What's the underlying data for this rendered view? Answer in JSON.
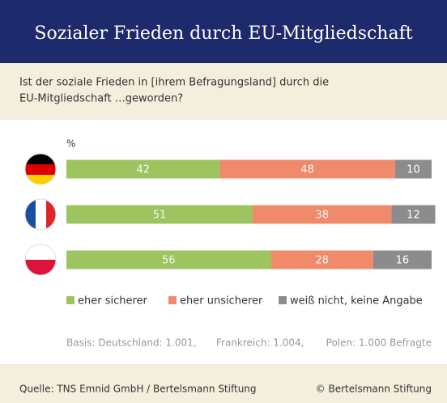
{
  "chart_data": {
    "type": "stacked-barh",
    "title": "Sozialer Frieden durch EU-Mitgliedschaft",
    "subtitle": [
      "Ist der soziale Frieden in [ihrem Befragungsland] durch die",
      "EU-Mitgliedschaft …geworden?"
    ],
    "x_label": "%",
    "xlim": [
      0,
      100
    ],
    "series": [
      {
        "name": "eher sicherer",
        "color": "#9dc45f",
        "values": [
          42,
          51,
          56
        ]
      },
      {
        "name": "eher unsicherer",
        "color": "#f08a6a",
        "values": [
          48,
          38,
          28
        ]
      },
      {
        "name": "weiß nicht, keine Angabe",
        "color": "#8c8c8c",
        "values": [
          10,
          12,
          16
        ]
      }
    ],
    "notes": [
      "Basis: Deutschland: 1.001,",
      "Frankreich: 1.004,",
      "Polen: 1.000 Befragte"
    ],
    "source": "Quelle: TNS Emnid GmbH / Bertelsmann Stiftung",
    "copyright": "© Bertelsmann Stiftung"
  }
}
